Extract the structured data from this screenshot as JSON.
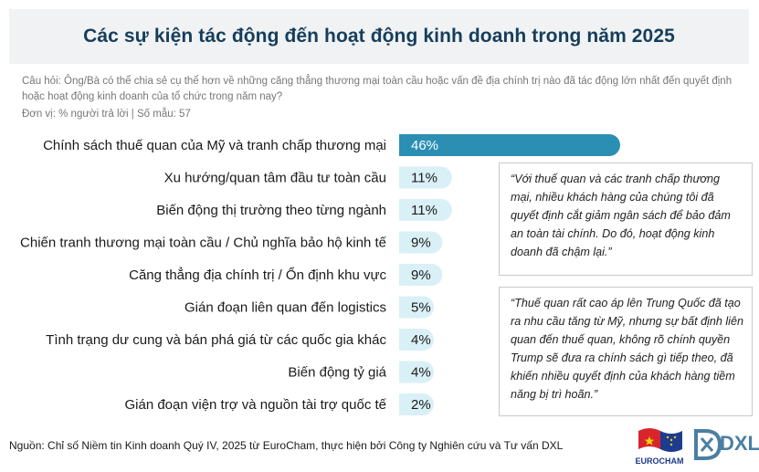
{
  "header": {
    "title": "Các sự kiện tác động đến hoạt động kinh doanh trong năm 2025"
  },
  "question": "Câu hỏi: Ông/Bà có thể chia sẻ cụ thể hơn về những căng thẳng thương mại toàn cầu hoặc vấn đề địa chính trị nào đã tác động lớn nhất đến quyết định hoặc hoạt động kinh doanh của tổ chức trong năm nay?",
  "unit": "Đơn vị: % người trả lời | Số mẫu: 57",
  "chart_data": {
    "type": "bar",
    "orientation": "horizontal",
    "title": "Các sự kiện tác động đến hoạt động kinh doanh trong năm 2025",
    "categories": [
      "Chính sách thuế quan của Mỹ và tranh chấp thương mại",
      "Xu hướng/quan tâm đầu tư toàn cầu",
      "Biến động thị trường theo từng ngành",
      "Chiến tranh thương mại toàn cầu / Chủ nghĩa bảo hộ kinh tế",
      "Căng thẳng địa chính trị / Ổn định khu vực",
      "Gián đoạn liên quan đến logistics",
      "Tình trạng dư cung và bán phá giá từ các quốc gia khác",
      "Biến động tỷ giá",
      "Gián đoạn viện trợ và nguồn tài trợ quốc tế"
    ],
    "values": [
      46,
      11,
      11,
      9,
      9,
      5,
      4,
      4,
      2
    ],
    "value_labels": [
      "46%",
      "11%",
      "11%",
      "9%",
      "9%",
      "5%",
      "4%",
      "4%",
      "2%"
    ],
    "unit": "%",
    "grid": false,
    "legend": "none",
    "colors": {
      "highlight": "#2a8fb3",
      "base": "#d9f0f6",
      "highlight_text": "#ffffff",
      "base_text": "#1a1a1a"
    }
  },
  "quotes": [
    "“Với thuế quan và các tranh chấp thương mại, nhiều khách hàng của chúng tôi đã quyết định cắt giảm ngân sách để bảo đảm an toàn tài chính. Do đó, hoạt động kinh doanh đã chậm lại.”",
    "“Thuế quan rất cao áp lên Trung Quốc đã tạo ra nhu cầu tăng từ Mỹ, nhưng sự bất định liên quan đến thuế quan, không rõ chính quyền Trump sẽ đưa ra chính sách gì tiếp theo, đã khiến nhiều quyết định của khách hàng tiềm năng bị trì hoãn.”"
  ],
  "footer": {
    "source": "Nguồn: Chỉ số Niềm tin Kinh doanh Quý IV, 2025 từ EuroCham, thực hiện bởi Công ty Nghiên cứu và Tư vấn DXL",
    "logos": {
      "eurocham": "EUROCHAM",
      "dxl": "DXL"
    }
  }
}
